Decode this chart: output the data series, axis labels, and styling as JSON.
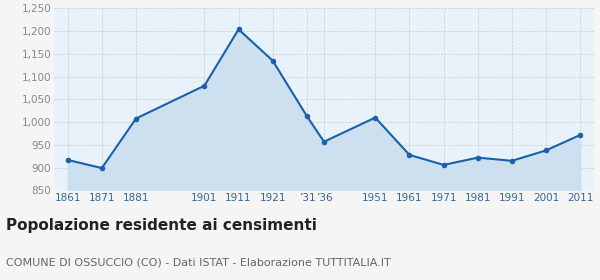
{
  "years": [
    1861,
    1871,
    1881,
    1901,
    1911,
    1921,
    1931,
    1936,
    1951,
    1961,
    1971,
    1981,
    1991,
    2001,
    2011
  ],
  "population": [
    917,
    899,
    1008,
    1080,
    1204,
    1135,
    1013,
    957,
    1010,
    928,
    906,
    922,
    915,
    938,
    972
  ],
  "x_labels": [
    "1861",
    "1871",
    "1881",
    "1901",
    "1911",
    "1921",
    "’31",
    "’36",
    "1951",
    "1961",
    "1971",
    "1981",
    "1991",
    "2001",
    "2011"
  ],
  "ylim": [
    850,
    1250
  ],
  "yticks": [
    850,
    900,
    950,
    1000,
    1050,
    1100,
    1150,
    1200,
    1250
  ],
  "ytick_labels": [
    "850",
    "900",
    "950",
    "1,000",
    "1,050",
    "1,100",
    "1,150",
    "1,200",
    "1,250"
  ],
  "line_color": "#1c5faa",
  "fill_color": "#cce0f0",
  "marker_color": "#1c5faa",
  "plot_bg_color": "#e8f2fb",
  "fig_bg_color": "#f5f5f5",
  "grid_color": "#cccccc",
  "ytick_color": "#888888",
  "xtick_color": "#336699",
  "title": "Popolazione residente ai censimenti",
  "subtitle": "COMUNE DI OSSUCCIO (CO) - Dati ISTAT - Elaborazione TUTTITALIA.IT",
  "title_fontsize": 11,
  "subtitle_fontsize": 8,
  "tick_fontsize": 7.5
}
